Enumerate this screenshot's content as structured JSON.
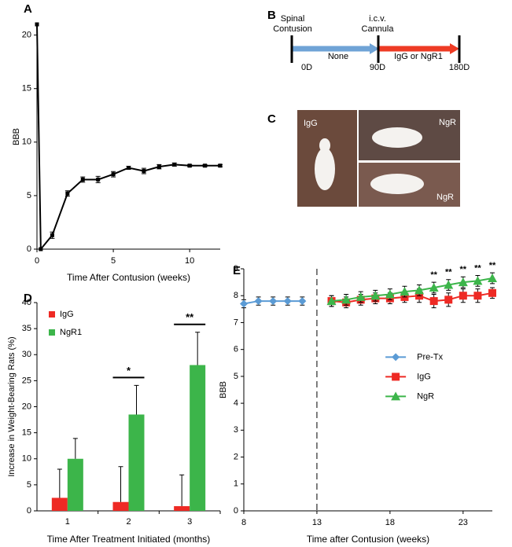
{
  "chart_data": [
    {
      "panel": "A",
      "type": "line",
      "ylabel": "BBB",
      "xlabel": "Time After Contusion (weeks)",
      "xlim": [
        0,
        12
      ],
      "xticks": [
        0,
        5,
        10
      ],
      "ylim": [
        0,
        21
      ],
      "yticks": [
        0,
        5,
        10,
        15,
        20
      ],
      "series": [
        {
          "color": "#000000",
          "marker": "square",
          "x": [
            0,
            0.25,
            1,
            2,
            3,
            4,
            5,
            6,
            7,
            8,
            9,
            10,
            11,
            12
          ],
          "values": [
            21,
            0,
            1.3,
            5.2,
            6.5,
            6.5,
            7.0,
            7.6,
            7.3,
            7.7,
            7.9,
            7.8,
            7.8,
            7.8
          ],
          "errors": [
            0,
            0,
            0.3,
            0.25,
            0.25,
            0.3,
            0.25,
            0.15,
            0.25,
            0.2,
            0.15,
            0.1,
            0.1,
            0.1
          ]
        }
      ]
    },
    {
      "panel": "D",
      "type": "bar",
      "ylabel": "Increase in Weight-Bearing Rats (%)",
      "xlabel": "Time After Treatment Initiated (months)",
      "categories": [
        "1",
        "2",
        "3"
      ],
      "ylim": [
        0,
        40
      ],
      "yticks": [
        0,
        5,
        10,
        15,
        20,
        25,
        30,
        35,
        40
      ],
      "legend": "top-left",
      "significance": [
        null,
        "*",
        "**"
      ],
      "series": [
        {
          "name": "IgG",
          "color": "#ee2a24",
          "values": [
            2.5,
            1.7,
            0.9
          ],
          "errors": [
            5.5,
            6.8,
            6.0
          ]
        },
        {
          "name": "NgR1",
          "color": "#3cb54a",
          "values": [
            10,
            18.5,
            28
          ],
          "errors": [
            3.9,
            5.6,
            6.3
          ]
        }
      ]
    },
    {
      "panel": "E",
      "type": "line",
      "ylabel": "BBB",
      "xlabel": "Time after Contusion (weeks)",
      "xlim": [
        8,
        25
      ],
      "xticks": [
        8,
        13,
        18,
        23
      ],
      "ylim": [
        0,
        9
      ],
      "yticks": [
        0,
        1,
        2,
        3,
        4,
        5,
        6,
        7,
        8,
        9
      ],
      "vline": 13,
      "legend": "right",
      "series": [
        {
          "name": "Pre-Tx",
          "color": "#5b9bd5",
          "marker": "diamond",
          "x": [
            8,
            9,
            10,
            11,
            12
          ],
          "values": [
            7.7,
            7.8,
            7.8,
            7.8,
            7.8
          ],
          "errors": [
            0.15,
            0.15,
            0.15,
            0.15,
            0.15
          ]
        },
        {
          "name": "IgG",
          "color": "#ee2a24",
          "marker": "square",
          "x": [
            14,
            15,
            16,
            17,
            18,
            19,
            20,
            21,
            22,
            23,
            24,
            25
          ],
          "values": [
            7.8,
            7.75,
            7.85,
            7.9,
            7.9,
            7.95,
            8.0,
            7.8,
            7.85,
            8.0,
            8.0,
            8.1
          ],
          "errors": [
            0.2,
            0.2,
            0.2,
            0.2,
            0.2,
            0.2,
            0.25,
            0.25,
            0.25,
            0.25,
            0.25,
            0.2
          ]
        },
        {
          "name": "NgR",
          "color": "#3cb54a",
          "marker": "triangle",
          "x": [
            14,
            15,
            16,
            17,
            18,
            19,
            20,
            21,
            22,
            23,
            24,
            25
          ],
          "values": [
            7.8,
            7.85,
            7.95,
            8.0,
            8.05,
            8.15,
            8.2,
            8.3,
            8.4,
            8.5,
            8.55,
            8.65
          ],
          "errors": [
            0.2,
            0.2,
            0.2,
            0.2,
            0.2,
            0.2,
            0.2,
            0.2,
            0.2,
            0.2,
            0.2,
            0.2
          ],
          "value_annotations": [
            null,
            null,
            null,
            null,
            null,
            null,
            null,
            "**",
            "**",
            "**",
            "**",
            "**"
          ]
        }
      ]
    }
  ],
  "timeline": {
    "panel": "B",
    "start_label": [
      "Spinal",
      "Contusion"
    ],
    "mid_label": [
      "i.c.v.",
      "Cannula"
    ],
    "ticks": [
      "0D",
      "90D",
      "180D"
    ],
    "phase1": "None",
    "phase2": "IgG or NgR1"
  },
  "photos": {
    "panel": "C",
    "labels": [
      "IgG",
      "NgR",
      "NgR"
    ]
  }
}
